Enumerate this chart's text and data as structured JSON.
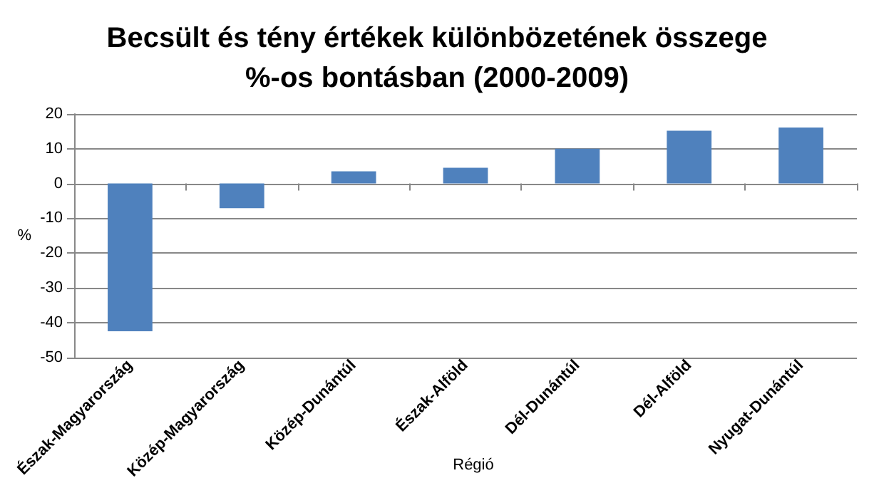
{
  "chart_data": {
    "type": "bar",
    "title": "Becsült és tény értékek különbözetének összege\n%-os bontásban (2000-2009)",
    "categories": [
      "Észak-Magyarország",
      "Közép-Magyarország",
      "Közép-Dunántúl",
      "Észak-Alföld",
      "Dél-Dunántúl",
      "Dél-Alföld",
      "Nyugat-Dunántúl"
    ],
    "values": [
      -42.5,
      -7.1,
      3.5,
      4.5,
      10,
      15.2,
      16.1
    ],
    "color": "#4f81bd",
    "xlabel": "Régió",
    "ylabel": "%",
    "ylim": [
      -50,
      20
    ],
    "yticks": [
      -50,
      -40,
      -30,
      -20,
      -10,
      0,
      10,
      20
    ],
    "grid": "y"
  }
}
